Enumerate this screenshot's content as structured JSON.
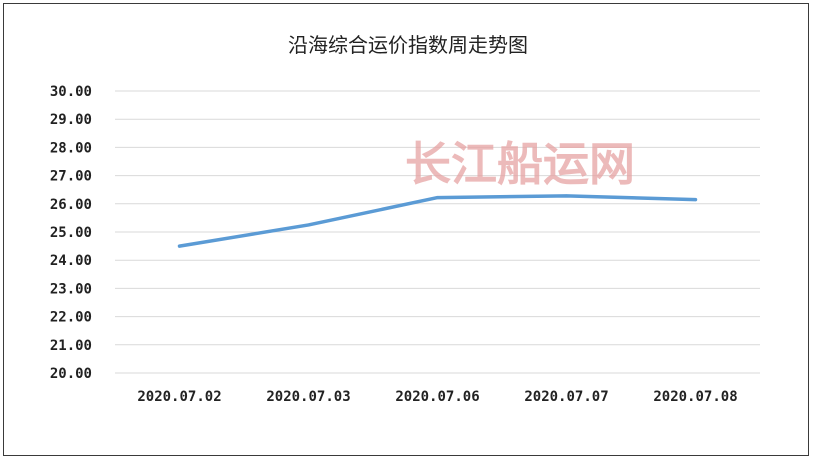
{
  "chart_data": {
    "type": "line",
    "title": "沿海综合运价指数周走势图",
    "xlabel": "",
    "ylabel": "",
    "categories": [
      "2020.07.02",
      "2020.07.03",
      "2020.07.06",
      "2020.07.07",
      "2020.07.08"
    ],
    "series": [
      {
        "values": [
          24.5,
          25.25,
          26.22,
          26.28,
          26.15
        ]
      }
    ],
    "ylim": [
      20,
      30
    ],
    "yticks": [
      "20.00",
      "21.00",
      "22.00",
      "23.00",
      "24.00",
      "25.00",
      "26.00",
      "27.00",
      "28.00",
      "29.00",
      "30.00"
    ],
    "grid": true,
    "legend": "none",
    "line_color": "#5b9bd5",
    "grid_color": "#d9d9d9"
  },
  "watermark": {
    "text": "长江船运网",
    "color": "#e6a3a3"
  }
}
